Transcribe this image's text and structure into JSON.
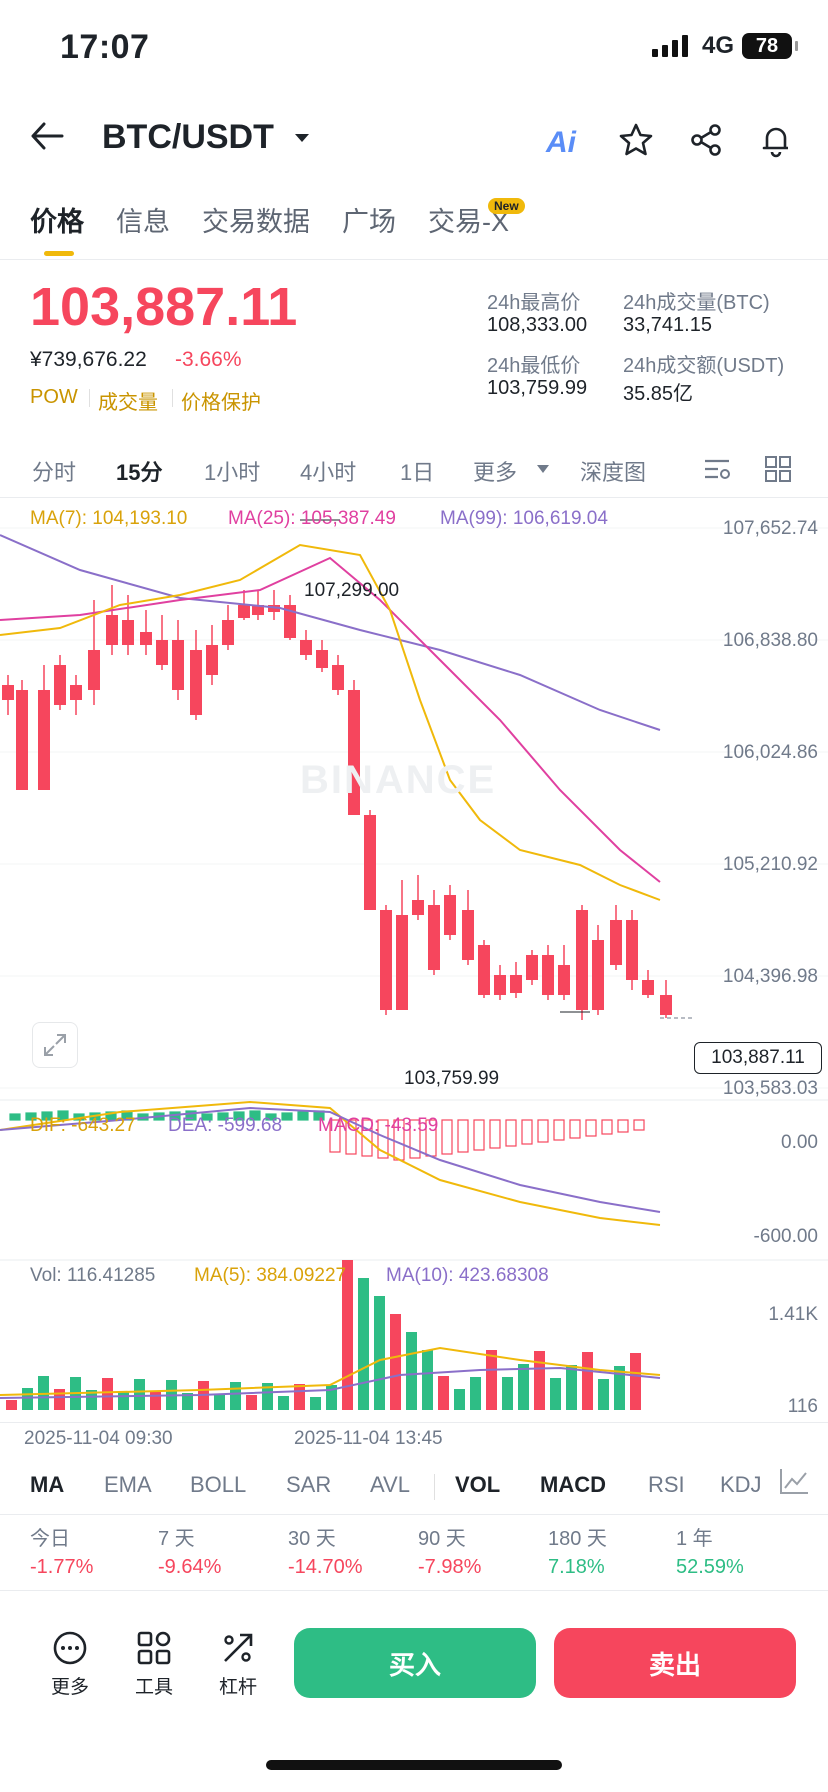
{
  "status": {
    "time": "17:07",
    "network": "4G",
    "battery": "78"
  },
  "header": {
    "pair": "BTC/USDT",
    "ai_label": "Ai"
  },
  "tabs": [
    {
      "label": "价格"
    },
    {
      "label": "信息"
    },
    {
      "label": "交易数据"
    },
    {
      "label": "广场"
    },
    {
      "label": "交易-X",
      "badge": "New"
    }
  ],
  "price": {
    "last": "103,887.11",
    "cny": "¥739,676.22",
    "change": "-3.66%",
    "tags": [
      "POW",
      "成交量",
      "价格保护"
    ],
    "stats": [
      {
        "label": "24h最高价",
        "value": "108,333.00"
      },
      {
        "label": "24h成交量(BTC)",
        "value": "33,741.15"
      },
      {
        "label": "24h最低价",
        "value": "103,759.99"
      },
      {
        "label": "24h成交额(USDT)",
        "value": "35.85亿"
      }
    ]
  },
  "intervals": [
    "分时",
    "15分",
    "1小时",
    "4小时",
    "1日",
    "更多",
    "深度图"
  ],
  "ma_legend": {
    "ma7": "MA(7): 104,193.10",
    "ma25": "MA(25): 105,387.49",
    "ma99": "MA(99): 106,619.04"
  },
  "price_axis": [
    "107,652.74",
    "106,838.80",
    "106,024.86",
    "105,210.92",
    "104,396.98",
    "103,583.03"
  ],
  "current_price_label": "103,887.11",
  "annotations": {
    "high": "107,299.00",
    "low": "103,759.99"
  },
  "watermark": "BINANCE",
  "macd_legend": {
    "dif": "DIF: -643.27",
    "dea": "DEA: -599.68",
    "macd": "MACD: -43.59"
  },
  "macd_axis": [
    "0.00",
    "-600.00"
  ],
  "vol_legend": {
    "vol": "Vol: 116.41285",
    "ma5": "MA(5): 384.09227",
    "ma10": "MA(10): 423.68308"
  },
  "vol_axis": [
    "1.41K",
    "116"
  ],
  "dates": [
    "2025-11-04 09:30",
    "2025-11-04 13:45"
  ],
  "indicators": [
    "MA",
    "EMA",
    "BOLL",
    "SAR",
    "AVL",
    "VOL",
    "MACD",
    "RSI",
    "KDJ"
  ],
  "performance": [
    {
      "label": "今日",
      "value": "-1.77%"
    },
    {
      "label": "7 天",
      "value": "-9.64%"
    },
    {
      "label": "30 天",
      "value": "-14.70%"
    },
    {
      "label": "90 天",
      "value": "-7.98%"
    },
    {
      "label": "180 天",
      "value": "7.18%"
    },
    {
      "label": "1 年",
      "value": "52.59%"
    }
  ],
  "bottom": {
    "more": "更多",
    "tools": "工具",
    "leverage": "杠杆",
    "buy": "买入",
    "sell": "卖出"
  },
  "colors": {
    "up": "#2ebd85",
    "down": "#f6465d",
    "ma7": "#f0b90b",
    "ma25": "#e040a0",
    "ma99": "#8a6fc9"
  }
}
